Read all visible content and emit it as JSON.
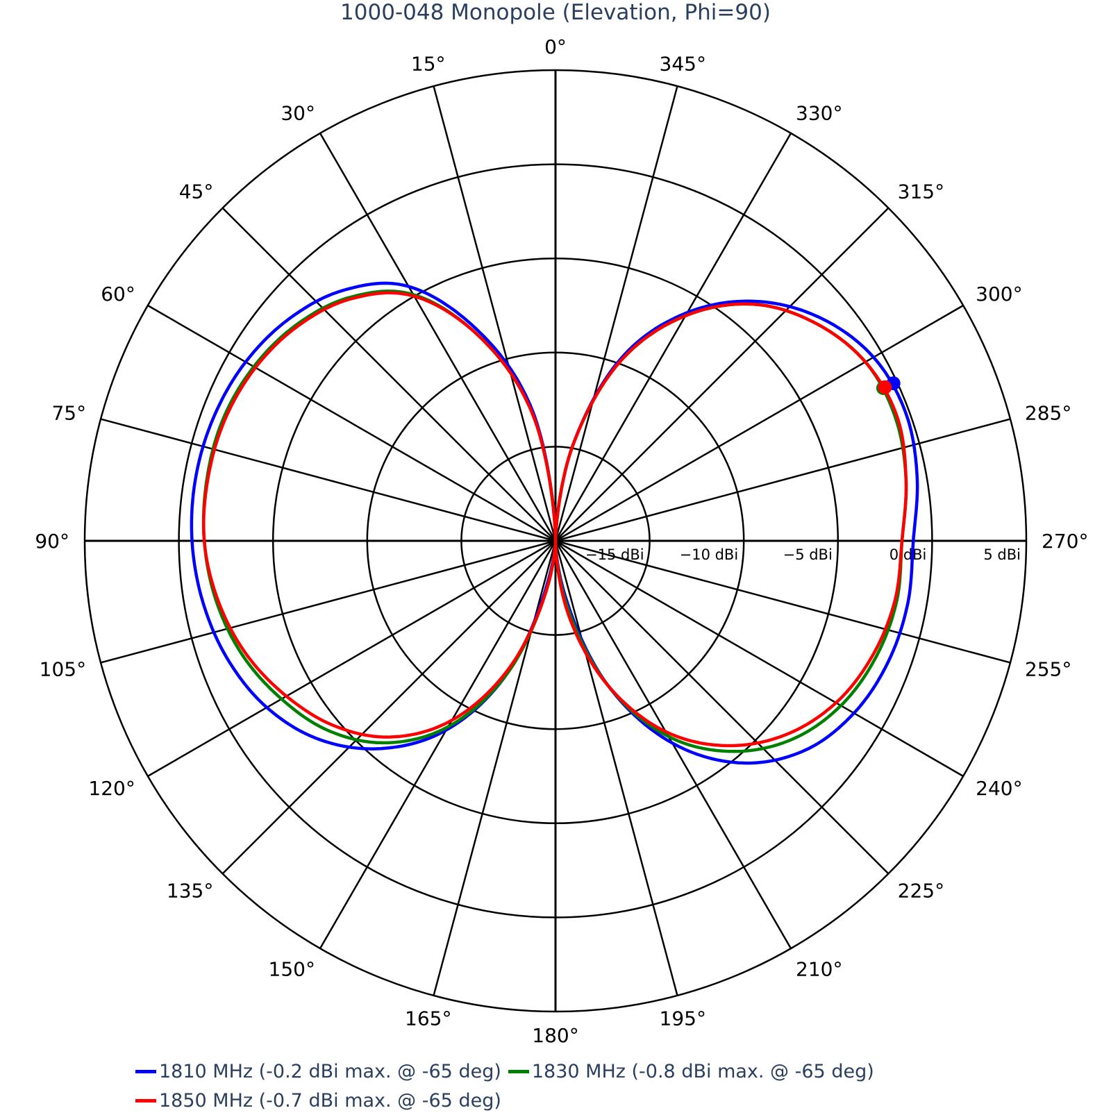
{
  "chart_data": {
    "type": "polar-line",
    "title": "1000-048 Monopole (Elevation, Phi=90)",
    "angular_axis": {
      "direction": "counterclockwise",
      "rotation_zero_at": "top",
      "tick_labels": [
        "0°",
        "15°",
        "30°",
        "45°",
        "60°",
        "75°",
        "90°",
        "105°",
        "120°",
        "135°",
        "150°",
        "165°",
        "180°",
        "195°",
        "210°",
        "225°",
        "240°",
        "255°",
        "270°",
        "285°",
        "300°",
        "315°",
        "330°",
        "345°"
      ]
    },
    "radial_axis": {
      "range": [
        -20,
        5
      ],
      "unit": "dBi",
      "tick_values": [
        -15,
        -10,
        -5,
        0,
        5
      ],
      "tick_labels": [
        "−15 dBi",
        "−10 dBi",
        "−5 dBi",
        "0 dBi",
        "5 dBi"
      ],
      "tick_angle": 270
    },
    "theta": [
      0,
      10,
      20,
      30,
      40,
      50,
      60,
      70,
      80,
      90,
      100,
      110,
      120,
      130,
      140,
      150,
      160,
      170,
      180,
      190,
      200,
      210,
      220,
      230,
      240,
      250,
      260,
      270,
      280,
      290,
      300,
      310,
      320,
      330,
      340,
      350
    ],
    "series": [
      {
        "name": "1810 MHz (-0.2 dBi max. @ -65 deg)",
        "color": "#0000ff",
        "values": [
          -20,
          -13.0,
          -8.2,
          -4.4,
          -2.6,
          -1.6,
          -1.0,
          -0.7,
          -0.6,
          -0.7,
          -1.0,
          -1.5,
          -2.3,
          -3.6,
          -5.6,
          -8.4,
          -12.5,
          -18.0,
          -20,
          -17.0,
          -11.8,
          -7.6,
          -4.6,
          -2.7,
          -1.7,
          -1.2,
          -1.0,
          -1.0,
          -0.5,
          -0.2,
          -0.5,
          -1.6,
          -3.4,
          -6.0,
          -9.6,
          -15.0
        ],
        "marker": {
          "theta": 295,
          "r": -0.2
        }
      },
      {
        "name": "1830 MHz (-0.8 dBi max. @ -65 deg)",
        "color": "#008000",
        "values": [
          -20,
          -13.3,
          -8.6,
          -4.9,
          -3.1,
          -2.1,
          -1.5,
          -1.2,
          -1.2,
          -1.35,
          -1.7,
          -2.3,
          -3.2,
          -4.3,
          -6.0,
          -8.6,
          -12.5,
          -17.5,
          -20,
          -16.5,
          -11.8,
          -8.0,
          -5.4,
          -3.6,
          -2.5,
          -1.9,
          -1.6,
          -1.6,
          -1.1,
          -0.8,
          -1.0,
          -2.0,
          -3.6,
          -6.2,
          -9.8,
          -15.0
        ],
        "marker": {
          "theta": 295,
          "r": -0.8
        }
      },
      {
        "name": "1850 MHz (-0.7 dBi max. @ -65 deg)",
        "color": "#ff0000",
        "values": [
          -20,
          -13.3,
          -8.6,
          -5.0,
          -3.2,
          -2.2,
          -1.6,
          -1.3,
          -1.25,
          -1.35,
          -1.8,
          -2.5,
          -3.5,
          -4.7,
          -6.4,
          -9.0,
          -12.8,
          -17.5,
          -20,
          -16.0,
          -11.8,
          -8.3,
          -5.8,
          -4.0,
          -2.8,
          -2.1,
          -1.7,
          -1.6,
          -1.1,
          -0.7,
          -1.0,
          -2.0,
          -3.6,
          -6.2,
          -9.8,
          -15.0
        ],
        "marker": {
          "theta": 295,
          "r": -0.7
        }
      }
    ],
    "legend_position": "bottom"
  },
  "title": "1000-048 Monopole (Elevation, Phi=90)",
  "legend": {
    "items": [
      {
        "label": "1810 MHz (-0.2 dBi max. @ -65 deg)",
        "color": "#0000ff"
      },
      {
        "label": "1830 MHz (-0.8 dBi max. @ -65 deg)",
        "color": "#008000"
      },
      {
        "label": "1850 MHz (-0.7 dBi max. @ -65 deg)",
        "color": "#ff0000"
      }
    ]
  },
  "colors": {
    "title_text": "#2a3f5f",
    "grid": "#000000",
    "background": "#ffffff"
  }
}
